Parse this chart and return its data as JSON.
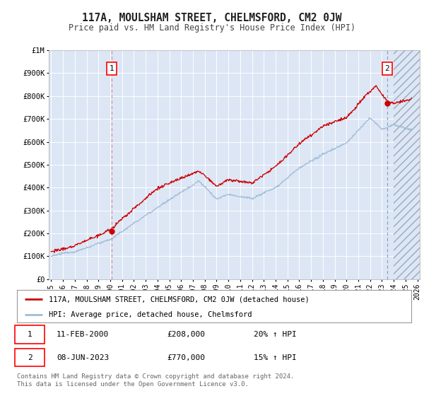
{
  "title": "117A, MOULSHAM STREET, CHELMSFORD, CM2 0JW",
  "subtitle": "Price paid vs. HM Land Registry's House Price Index (HPI)",
  "background_color": "#ffffff",
  "plot_bg_color": "#dce6f5",
  "grid_color": "#ffffff",
  "x_start": 1995,
  "x_end": 2026,
  "y_min": 0,
  "y_max": 1000000,
  "y_ticks": [
    0,
    100000,
    200000,
    300000,
    400000,
    500000,
    600000,
    700000,
    800000,
    900000,
    1000000
  ],
  "y_tick_labels": [
    "£0",
    "£100K",
    "£200K",
    "£300K",
    "£400K",
    "£500K",
    "£600K",
    "£700K",
    "£800K",
    "£900K",
    "£1M"
  ],
  "x_ticks": [
    1995,
    1996,
    1997,
    1998,
    1999,
    2000,
    2001,
    2002,
    2003,
    2004,
    2005,
    2006,
    2007,
    2008,
    2009,
    2010,
    2011,
    2012,
    2013,
    2014,
    2015,
    2016,
    2017,
    2018,
    2019,
    2020,
    2021,
    2022,
    2023,
    2024,
    2025,
    2026
  ],
  "sale1_x": 2000.11,
  "sale1_y": 208000,
  "sale1_label": "1",
  "sale1_date": "11-FEB-2000",
  "sale1_price": "£208,000",
  "sale1_hpi": "20% ↑ HPI",
  "sale2_x": 2023.44,
  "sale2_y": 770000,
  "sale2_label": "2",
  "sale2_date": "08-JUN-2023",
  "sale2_price": "£770,000",
  "sale2_hpi": "15% ↑ HPI",
  "hpi_line_color": "#a0bcd8",
  "price_line_color": "#cc0000",
  "vline1_color": "#e08080",
  "vline2_color": "#8888cc",
  "legend_label1": "117A, MOULSHAM STREET, CHELMSFORD, CM2 0JW (detached house)",
  "legend_label2": "HPI: Average price, detached house, Chelmsford",
  "footer": "Contains HM Land Registry data © Crown copyright and database right 2024.\nThis data is licensed under the Open Government Licence v3.0."
}
